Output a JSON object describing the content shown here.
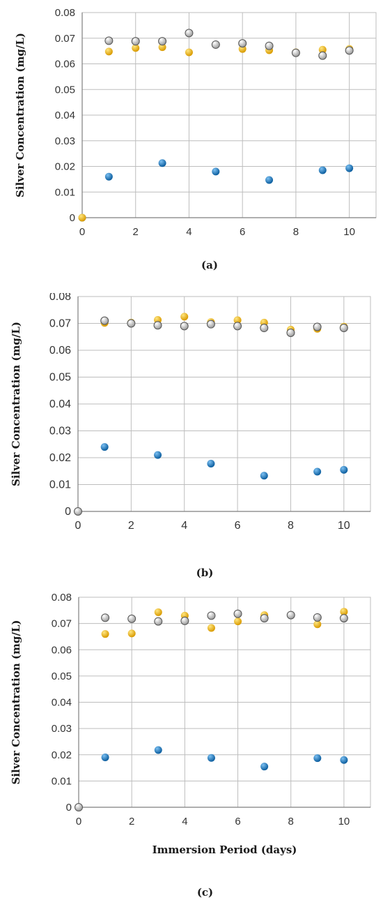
{
  "chart_data": [
    {
      "type": "scatter",
      "caption": "(a)",
      "xlabel": "",
      "ylabel": "Silver Concentration (mg/L)",
      "xlim": [
        0,
        11
      ],
      "ylim": [
        0,
        0.08
      ],
      "xticks": [
        "0",
        "2",
        "4",
        "6",
        "8",
        "10"
      ],
      "yticks": [
        "0",
        "0.01",
        "0.02",
        "0.03",
        "0.04",
        "0.05",
        "0.06",
        "0.07",
        "0.08"
      ],
      "grid": true,
      "series": [
        {
          "color": "#1f78c1",
          "points": [
            [
              0,
              0
            ],
            [
              1,
              0.016
            ],
            [
              3,
              0.0213
            ],
            [
              5,
              0.018
            ],
            [
              7,
              0.0147
            ],
            [
              9,
              0.0185
            ],
            [
              10,
              0.0193
            ]
          ]
        },
        {
          "color": "#f2b705",
          "points": [
            [
              0,
              0
            ],
            [
              1,
              0.0648
            ],
            [
              2,
              0.0662
            ],
            [
              3,
              0.0665
            ],
            [
              4,
              0.0645
            ],
            [
              5,
              0.0675
            ],
            [
              6,
              0.0658
            ],
            [
              7,
              0.0653
            ],
            [
              8,
              0.0645
            ],
            [
              9,
              0.0655
            ],
            [
              10,
              0.0658
            ]
          ]
        },
        {
          "color": "#e8e8e8",
          "points": [
            [
              1,
              0.069
            ],
            [
              2,
              0.0688
            ],
            [
              3,
              0.0688
            ],
            [
              4,
              0.072
            ],
            [
              5,
              0.0675
            ],
            [
              6,
              0.068
            ],
            [
              7,
              0.067
            ],
            [
              8,
              0.0643
            ],
            [
              9,
              0.0632
            ],
            [
              10,
              0.0652
            ]
          ]
        }
      ]
    },
    {
      "type": "scatter",
      "caption": "(b)",
      "xlabel": "",
      "ylabel": "Silver Concentration (mg/L)",
      "xlim": [
        0,
        11
      ],
      "ylim": [
        0,
        0.08
      ],
      "xticks": [
        "0",
        "2",
        "4",
        "6",
        "8",
        "10"
      ],
      "yticks": [
        "0",
        "0.01",
        "0.02",
        "0.03",
        "0.04",
        "0.05",
        "0.06",
        "0.07",
        "0.08"
      ],
      "grid": true,
      "series": [
        {
          "color": "#1f78c1",
          "points": [
            [
              1,
              0.024
            ],
            [
              3,
              0.021
            ],
            [
              5,
              0.0178
            ],
            [
              7,
              0.0133
            ],
            [
              9,
              0.0148
            ],
            [
              10,
              0.0155
            ]
          ]
        },
        {
          "color": "#f2b705",
          "points": [
            [
              1,
              0.0702
            ],
            [
              2,
              0.0703
            ],
            [
              3,
              0.0713
            ],
            [
              4,
              0.0725
            ],
            [
              5,
              0.0705
            ],
            [
              6,
              0.0712
            ],
            [
              7,
              0.0703
            ],
            [
              8,
              0.0677
            ],
            [
              9,
              0.068
            ],
            [
              10,
              0.0688
            ]
          ]
        },
        {
          "color": "#e8e8e8",
          "points": [
            [
              0,
              0
            ],
            [
              1,
              0.071
            ],
            [
              2,
              0.07
            ],
            [
              3,
              0.0693
            ],
            [
              4,
              0.069
            ],
            [
              5,
              0.0697
            ],
            [
              6,
              0.069
            ],
            [
              7,
              0.0683
            ],
            [
              8,
              0.0665
            ],
            [
              9,
              0.0687
            ],
            [
              10,
              0.0683
            ]
          ]
        }
      ]
    },
    {
      "type": "scatter",
      "caption": "(c)",
      "xlabel": "Immersion Period (days)",
      "ylabel": "Silver Concentration (mg/L)",
      "xlim": [
        0,
        11
      ],
      "ylim": [
        0,
        0.08
      ],
      "xticks": [
        "0",
        "2",
        "4",
        "6",
        "8",
        "10"
      ],
      "yticks": [
        "0",
        "0.01",
        "0.02",
        "0.03",
        "0.04",
        "0.05",
        "0.06",
        "0.07",
        "0.08"
      ],
      "grid": true,
      "series": [
        {
          "color": "#1f78c1",
          "points": [
            [
              1,
              0.019
            ],
            [
              3,
              0.0218
            ],
            [
              5,
              0.0188
            ],
            [
              7,
              0.0155
            ],
            [
              9,
              0.0187
            ],
            [
              10,
              0.018
            ]
          ]
        },
        {
          "color": "#f2b705",
          "points": [
            [
              1,
              0.066
            ],
            [
              2,
              0.0662
            ],
            [
              3,
              0.0743
            ],
            [
              4,
              0.073
            ],
            [
              5,
              0.0683
            ],
            [
              6,
              0.0708
            ],
            [
              7,
              0.0732
            ],
            [
              8,
              0.0732
            ],
            [
              9,
              0.0697
            ],
            [
              10,
              0.0745
            ]
          ]
        },
        {
          "color": "#e8e8e8",
          "points": [
            [
              0,
              0
            ],
            [
              1,
              0.0722
            ],
            [
              2,
              0.0718
            ],
            [
              3,
              0.0708
            ],
            [
              4,
              0.071
            ],
            [
              5,
              0.073
            ],
            [
              6,
              0.0737
            ],
            [
              7,
              0.072
            ],
            [
              8,
              0.0732
            ],
            [
              9,
              0.0723
            ],
            [
              10,
              0.072
            ]
          ]
        }
      ]
    }
  ]
}
